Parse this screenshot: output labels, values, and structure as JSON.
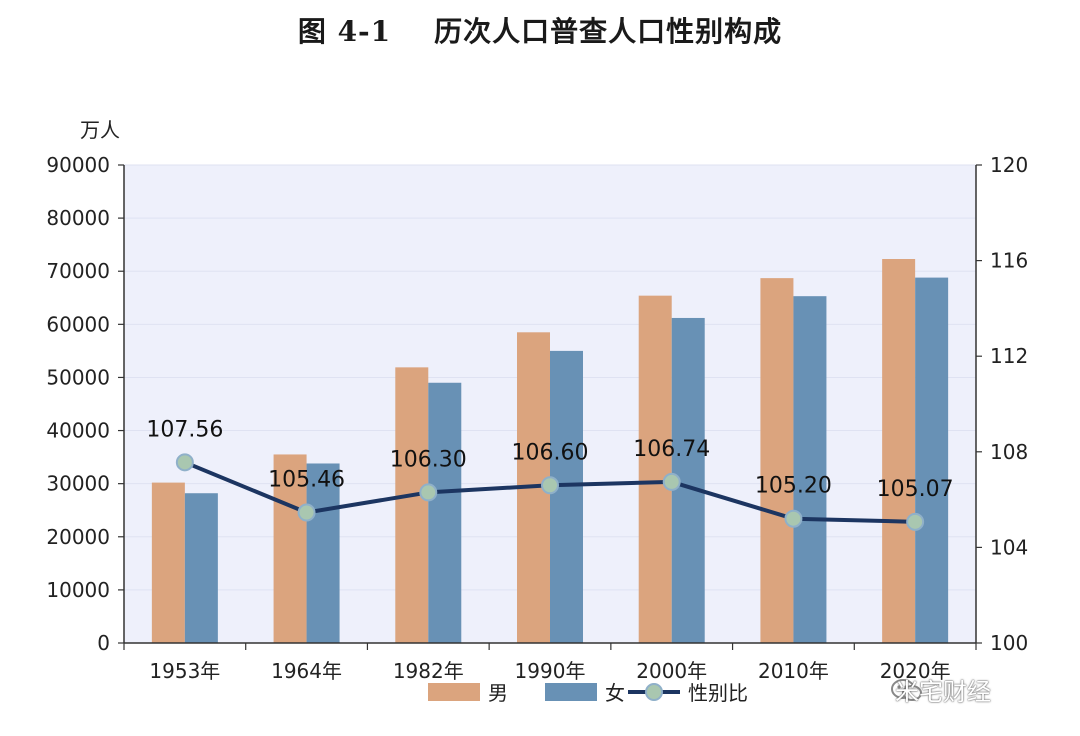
{
  "chart_data": {
    "type": "bar",
    "title": "图 4-1    历次人口普查人口性别构成",
    "ylabel": "万人",
    "ylim": [
      0,
      90000
    ],
    "y2lim": [
      100,
      120
    ],
    "y_ticks": [
      0,
      10000,
      20000,
      30000,
      40000,
      50000,
      60000,
      70000,
      80000,
      90000
    ],
    "y2_ticks": [
      100,
      104,
      108,
      112,
      116,
      120
    ],
    "categories": [
      "1953年",
      "1964年",
      "1982年",
      "1990年",
      "2000年",
      "2010年",
      "2020年"
    ],
    "series": [
      {
        "name": "男",
        "type": "bar",
        "color": "#dba47e",
        "values": [
          30200,
          35500,
          51900,
          58500,
          65400,
          68700,
          72300
        ]
      },
      {
        "name": "女",
        "type": "bar",
        "color": "#6891b5",
        "values": [
          28200,
          33800,
          49000,
          55000,
          61200,
          65300,
          68800
        ]
      },
      {
        "name": "性别比",
        "type": "line",
        "axis": "right",
        "color": "#1c3561",
        "values": [
          107.56,
          105.46,
          106.3,
          106.6,
          106.74,
          105.2,
          105.07
        ],
        "labels": [
          "107.56",
          "105.46",
          "106.30",
          "106.60",
          "106.74",
          "105.20",
          "105.07"
        ]
      }
    ],
    "grid": false,
    "legend": "bottom"
  },
  "watermark": {
    "text": "米宅财经",
    "icon": "wechat-icon"
  }
}
